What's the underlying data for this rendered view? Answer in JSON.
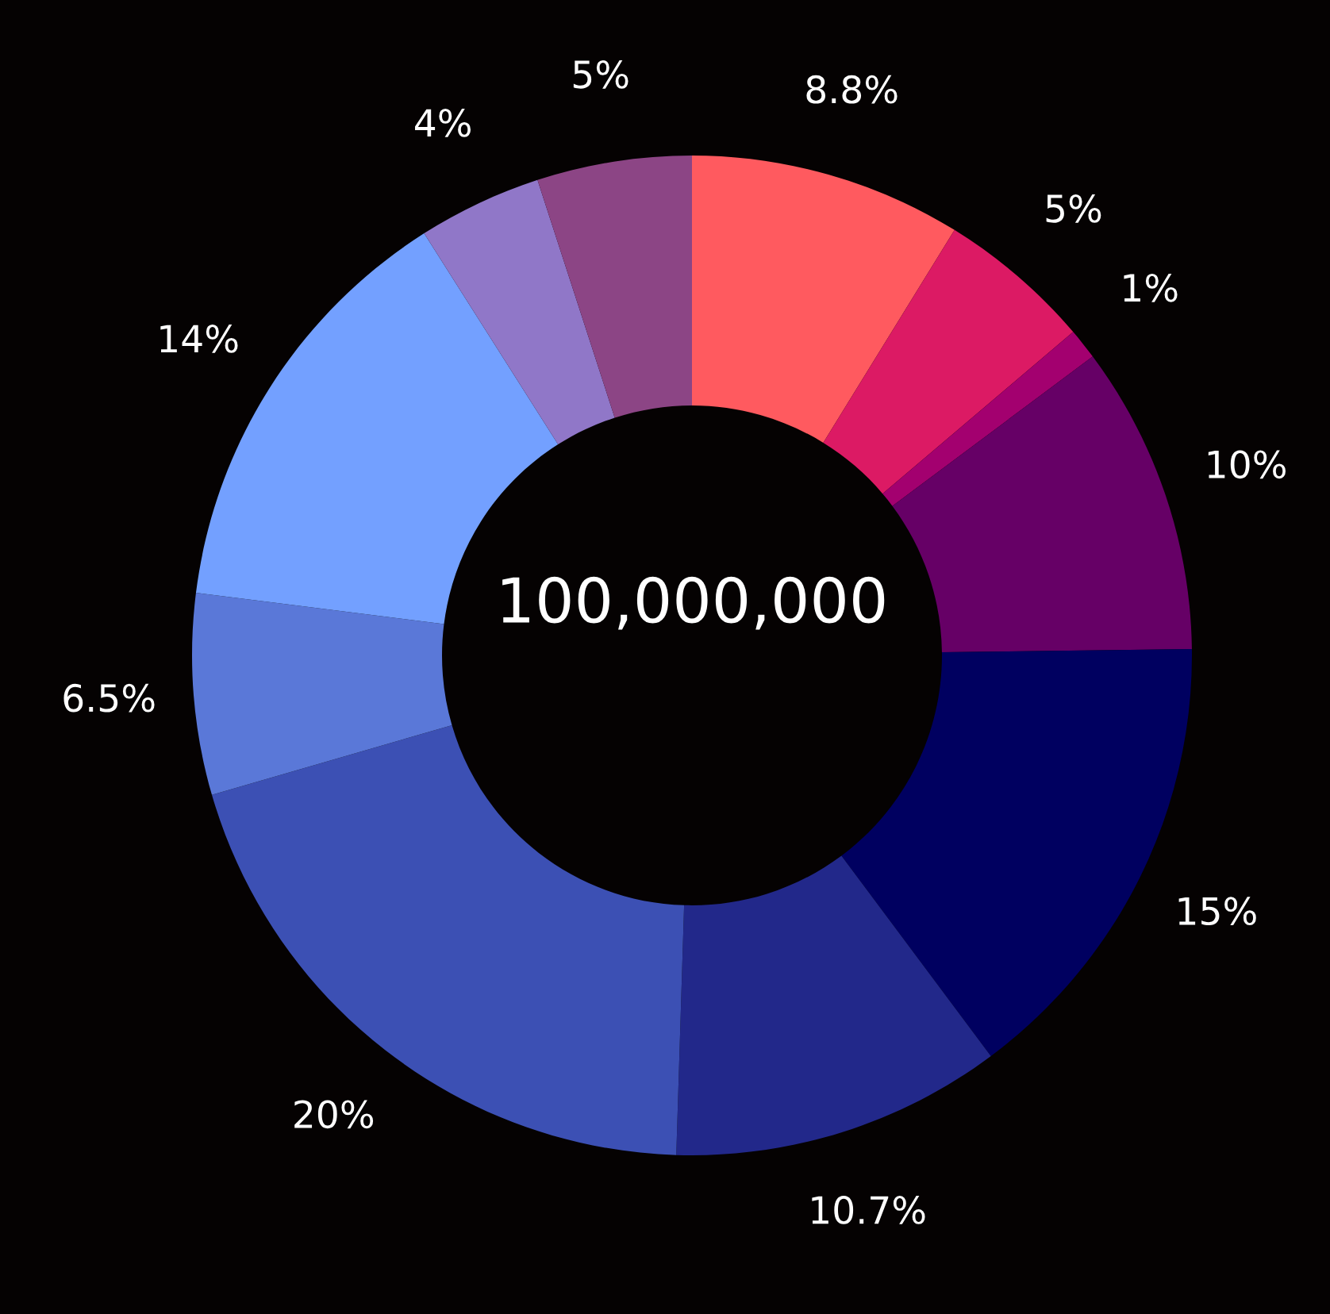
{
  "chart_data": {
    "type": "donut",
    "categories": [
      null,
      null,
      null,
      null,
      null,
      null,
      null,
      null,
      null,
      null,
      null
    ],
    "values": [
      8.8,
      5,
      1,
      10,
      15,
      10.7,
      20,
      6.5,
      14,
      4,
      5
    ],
    "value_labels": [
      "8.8%",
      "5%",
      "1%",
      "10%",
      "15%",
      "10.7%",
      "20%",
      "6.5%",
      "14%",
      "4%",
      "5%"
    ],
    "colors": [
      "#ff5a5f",
      "#dc1a64",
      "#a3006f",
      "#660066",
      "#000060",
      "#22288a",
      "#3c50b4",
      "#5a78d8",
      "#73a0ff",
      "#9077c8",
      "#8c4585"
    ],
    "annotations": [
      "100,000,000"
    ]
  }
}
